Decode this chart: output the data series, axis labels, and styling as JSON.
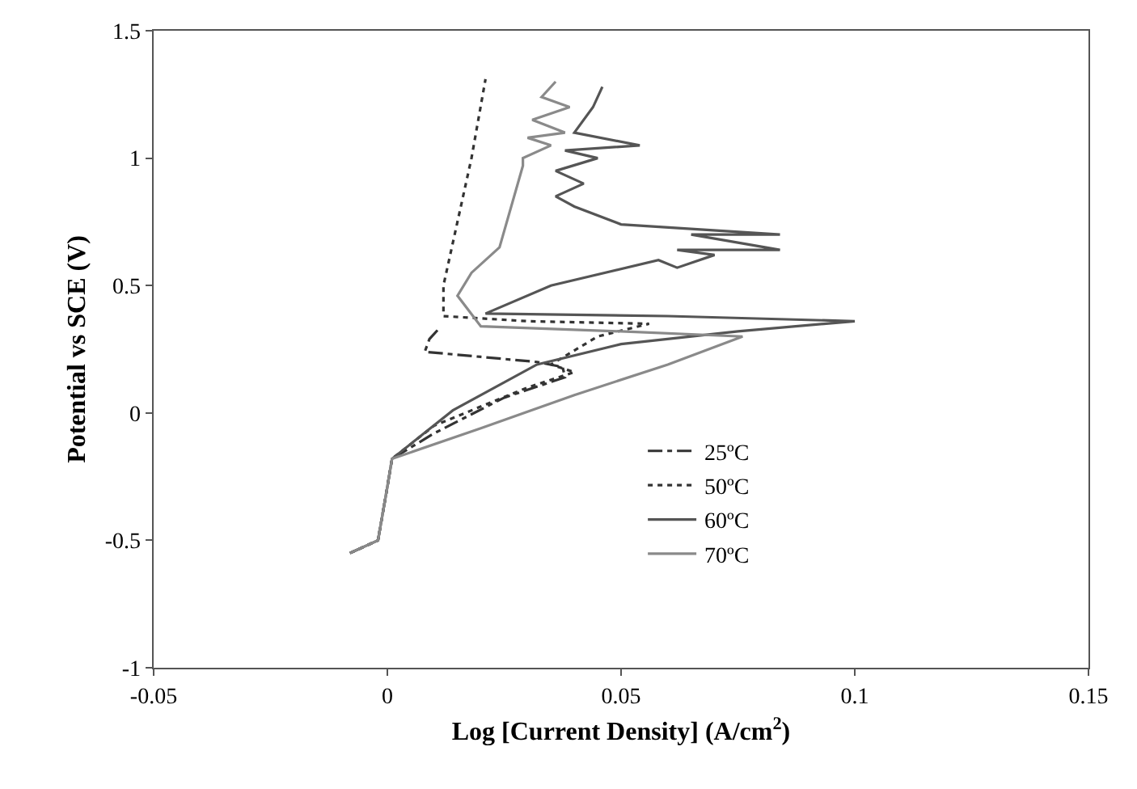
{
  "chart_data": {
    "type": "line",
    "xlabel": "Log [Current Density] (A/cm$^{2}$)",
    "ylabel": "Potential vs SCE (V)",
    "xlim": [
      -0.05,
      0.15
    ],
    "xticks": [
      -0.05,
      0,
      0.05,
      0.1,
      0.15
    ],
    "ylim": [
      -1,
      1.5
    ],
    "yticks": [
      -1,
      -0.5,
      0,
      0.5,
      1,
      1.5
    ],
    "grid": false,
    "legend": "right",
    "marker": "none",
    "series": [
      {
        "name": "25ºC",
        "color": "#333333",
        "line_style": "dashdot",
        "x": [
          -0.008,
          -0.002,
          0,
          0.001,
          0.01,
          0.025,
          0.038,
          0.0375,
          0.032,
          0.02,
          0.008,
          0.009,
          0.011
        ],
        "values": [
          -0.55,
          -0.5,
          -0.29,
          -0.18,
          -0.08,
          0.06,
          0.14,
          0.18,
          0.2,
          0.22,
          0.24,
          0.29,
          0.33
        ]
      },
      {
        "name": "50ºC",
        "color": "#333333",
        "line_style": "dotted",
        "x": [
          -0.008,
          -0.002,
          0,
          0.001,
          0.01,
          0.03,
          0.04,
          0.035,
          0.045,
          0.056,
          0.03,
          0.012,
          0.012,
          0.015,
          0.018,
          0.021
        ],
        "values": [
          -0.55,
          -0.5,
          -0.29,
          -0.18,
          -0.05,
          0.1,
          0.16,
          0.19,
          0.3,
          0.35,
          0.36,
          0.38,
          0.5,
          0.75,
          1.0,
          1.31
        ]
      },
      {
        "name": "60ºC",
        "color": "#555555",
        "line_style": "solid",
        "x": [
          -0.008,
          -0.002,
          0,
          0.001,
          0.014,
          0.032,
          0.05,
          0.075,
          0.1,
          0.06,
          0.021,
          0.035,
          0.058,
          0.062,
          0.07,
          0.062,
          0.065,
          0.084,
          0.065,
          0.084,
          0.05,
          0.04,
          0.036,
          0.042,
          0.036,
          0.045,
          0.038,
          0.054,
          0.04,
          0.044,
          0.046
        ],
        "values": [
          -0.55,
          -0.5,
          -0.29,
          -0.18,
          0.01,
          0.19,
          0.27,
          0.32,
          0.36,
          0.38,
          0.39,
          0.5,
          0.6,
          0.57,
          0.62,
          0.64,
          0.64,
          0.64,
          0.7,
          0.7,
          0.74,
          0.81,
          0.85,
          0.9,
          0.95,
          1.0,
          1.03,
          1.05,
          1.1,
          1.2,
          1.28
        ]
      },
      {
        "name": "70ºC",
        "color": "#8a8a8a",
        "line_style": "solid",
        "x": [
          -0.008,
          -0.002,
          0,
          0.001,
          0.02,
          0.04,
          0.06,
          0.076,
          0.05,
          0.02,
          0.015,
          0.018,
          0.024,
          0.029,
          0.029,
          0.035,
          0.03,
          0.038,
          0.031,
          0.039,
          0.033,
          0.036
        ],
        "values": [
          -0.55,
          -0.5,
          -0.29,
          -0.18,
          -0.06,
          0.07,
          0.19,
          0.3,
          0.32,
          0.34,
          0.46,
          0.55,
          0.65,
          0.97,
          1.0,
          1.05,
          1.08,
          1.1,
          1.15,
          1.2,
          1.24,
          1.3
        ]
      }
    ]
  }
}
